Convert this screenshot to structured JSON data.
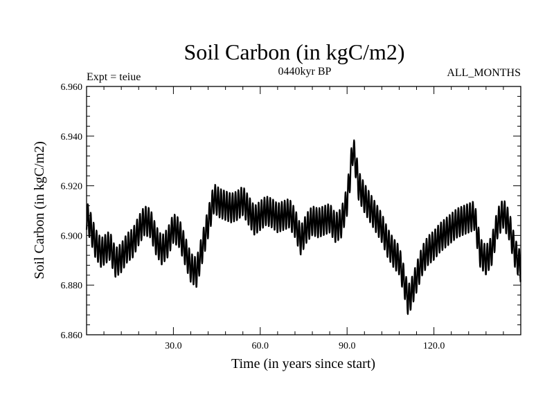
{
  "chart_data": {
    "type": "line",
    "title": "Soil Carbon (in kgC/m2)",
    "subtitle_left": "Expt = teiue",
    "subtitle_center": "0440kyr BP",
    "subtitle_right": "ALL_MONTHS",
    "xlabel": "Time (in years since start)",
    "ylabel": "Soil Carbon (in kgC/m2)",
    "xlim": [
      0,
      150
    ],
    "ylim": [
      6.86,
      6.96
    ],
    "x_ticks": [
      {
        "value": 30,
        "label": "30.0"
      },
      {
        "value": 60,
        "label": "60.0"
      },
      {
        "value": 90,
        "label": "90.0"
      },
      {
        "value": 120,
        "label": "120.0"
      }
    ],
    "y_ticks": [
      {
        "value": 6.86,
        "label": "6.860"
      },
      {
        "value": 6.88,
        "label": "6.880"
      },
      {
        "value": 6.9,
        "label": "6.900"
      },
      {
        "value": 6.92,
        "label": "6.920"
      },
      {
        "value": 6.94,
        "label": "6.940"
      },
      {
        "value": 6.96,
        "label": "6.960"
      }
    ],
    "series": [
      {
        "name": "Soil Carbon",
        "color": "#000000",
        "seasonal_amplitude": 0.006,
        "x": [
          0,
          1,
          3,
          5,
          8,
          10,
          12,
          14,
          16,
          18,
          20,
          22,
          24,
          26,
          28,
          30,
          32,
          34,
          36,
          38,
          40,
          42,
          44,
          46,
          48,
          50,
          52,
          54,
          56,
          58,
          60,
          62,
          64,
          66,
          68,
          70,
          72,
          74,
          76,
          78,
          80,
          82,
          84,
          86,
          88,
          90,
          91,
          92,
          93,
          94,
          96,
          98,
          100,
          102,
          104,
          106,
          108,
          110,
          111,
          112,
          114,
          116,
          118,
          120,
          122,
          124,
          126,
          128,
          130,
          132,
          134,
          136,
          138,
          140,
          142,
          144,
          146,
          148,
          150
        ],
        "values": [
          6.908,
          6.905,
          6.897,
          6.893,
          6.896,
          6.889,
          6.891,
          6.895,
          6.897,
          6.902,
          6.906,
          6.905,
          6.898,
          6.894,
          6.897,
          6.903,
          6.901,
          6.894,
          6.887,
          6.885,
          6.895,
          6.905,
          6.915,
          6.913,
          6.912,
          6.911,
          6.912,
          6.914,
          6.91,
          6.906,
          6.908,
          6.91,
          6.909,
          6.907,
          6.908,
          6.909,
          6.905,
          6.898,
          6.903,
          6.906,
          6.905,
          6.906,
          6.907,
          6.903,
          6.905,
          6.914,
          6.924,
          6.935,
          6.929,
          6.92,
          6.915,
          6.911,
          6.907,
          6.903,
          6.897,
          6.893,
          6.89,
          6.88,
          6.874,
          6.876,
          6.883,
          6.89,
          6.894,
          6.896,
          6.899,
          6.901,
          6.903,
          6.905,
          6.906,
          6.907,
          6.908,
          6.893,
          6.89,
          6.894,
          6.905,
          6.909,
          6.904,
          6.893,
          6.887
        ]
      }
    ]
  }
}
